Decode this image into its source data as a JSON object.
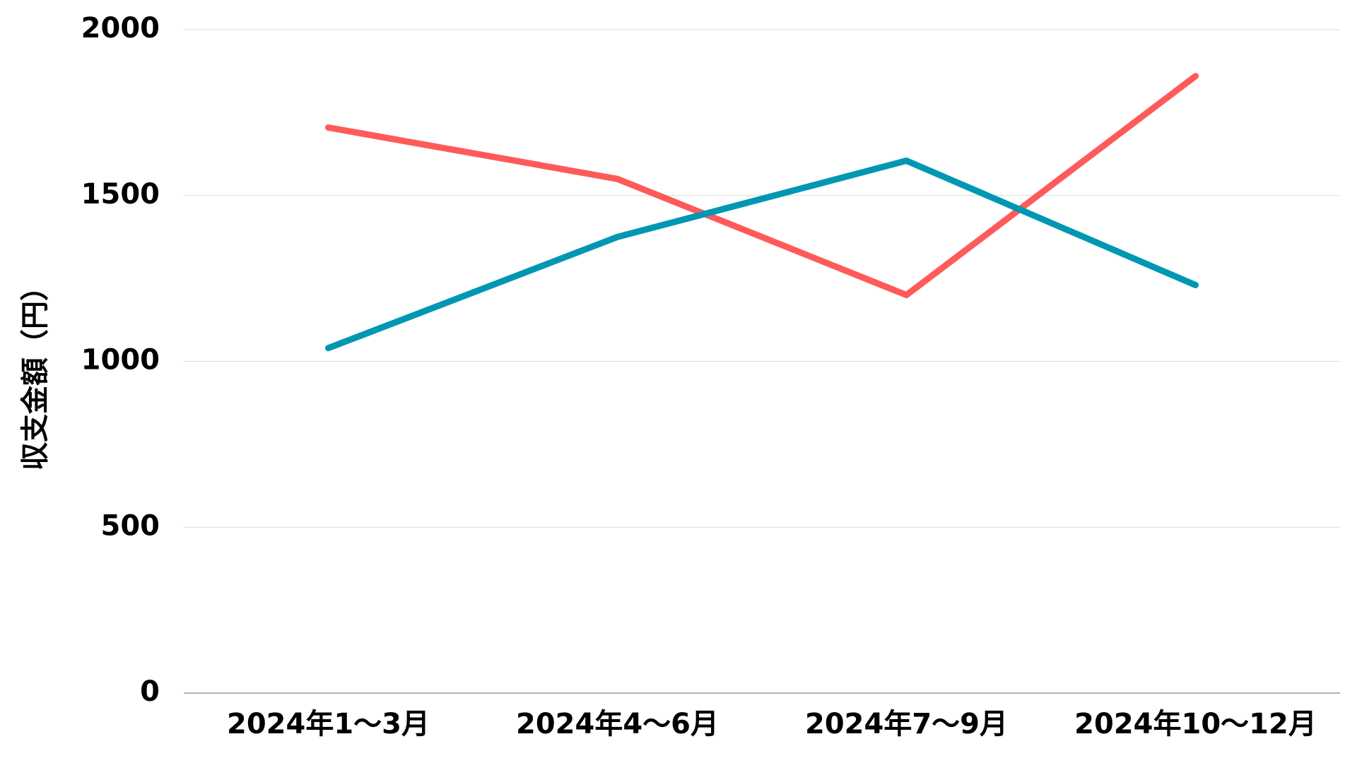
{
  "chart_data": {
    "type": "line",
    "y_label": "収支金額（円）",
    "categories": [
      "2024年1〜3月",
      "2024年4〜6月",
      "2024年7〜9月",
      "2024年10〜12月"
    ],
    "series": [
      {
        "color": "#ff5a5a",
        "values": [
          1705,
          1550,
          1200,
          1860
        ]
      },
      {
        "color": "#0097b2",
        "values": [
          1040,
          1375,
          1605,
          1230
        ]
      }
    ],
    "ylim": [
      0,
      2000
    ],
    "yticks": [
      0,
      500,
      1000,
      1500,
      2000
    ],
    "grid": true
  }
}
